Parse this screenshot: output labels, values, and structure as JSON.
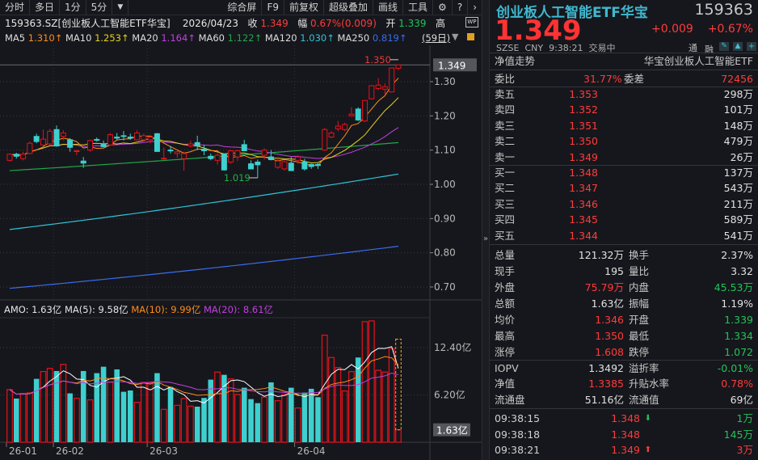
{
  "toolbar": {
    "items": [
      "分时",
      "多日",
      "1分",
      "5分"
    ],
    "dropdown_icon": "caret-down-icon",
    "right_items": [
      "综合屏",
      "F9",
      "前复权",
      "超级叠加",
      "画线",
      "工具"
    ],
    "icons": [
      "gear-icon",
      "help-icon",
      "chevron-right-icon"
    ]
  },
  "info": {
    "code_name": "159363.SZ[创业板人工智能ETF华宝]",
    "date": "2026/04/23",
    "close_label": "收",
    "close": "1.349",
    "change_label": "幅",
    "change": "0.67%(0.009)",
    "open_label": "开",
    "open": "1.339",
    "high_label": "高"
  },
  "ma": [
    {
      "label": "MA5",
      "value": "1.310↑",
      "color": "#ff8c1a"
    },
    {
      "label": "MA10",
      "value": "1.253↑",
      "color": "#e6d21e"
    },
    {
      "label": "MA20",
      "value": "1.164↑",
      "color": "#c040e0"
    },
    {
      "label": "MA60",
      "value": "1.122↑",
      "color": "#1fa84a"
    },
    {
      "label": "MA120",
      "value": "1.030↑",
      "color": "#2ec4d8"
    },
    {
      "label": "MA250",
      "value": "0.819↑",
      "color": "#3a6cf0"
    }
  ],
  "period_label": "(59日)",
  "chart_data": {
    "type": "candlestick",
    "price_axis": {
      "ticks": [
        "1.30",
        "1.20",
        "1.10",
        "1.00",
        "0.90",
        "0.80",
        "0.70"
      ],
      "range": [
        0.68,
        1.37
      ]
    },
    "current_price_label": "1.349",
    "high_marker": "1.350",
    "low_marker": "1.019",
    "date_labels": [
      {
        "label": "26-01",
        "index": 0
      },
      {
        "label": "26-02",
        "index": 7
      },
      {
        "label": "26-03",
        "index": 21
      },
      {
        "label": "26-04",
        "index": 43
      }
    ],
    "ohlc": [
      [
        1.07,
        1.09,
        1.066,
        1.088
      ],
      [
        1.088,
        1.092,
        1.075,
        1.082
      ],
      [
        1.075,
        1.095,
        1.07,
        1.088
      ],
      [
        1.09,
        1.125,
        1.088,
        1.12
      ],
      [
        1.14,
        1.148,
        1.12,
        1.125
      ],
      [
        1.115,
        1.16,
        1.112,
        1.132
      ],
      [
        1.118,
        1.162,
        1.115,
        1.155
      ],
      [
        1.16,
        1.172,
        1.11,
        1.112
      ],
      [
        1.14,
        1.158,
        1.128,
        1.15
      ],
      [
        1.13,
        1.135,
        1.095,
        1.108
      ],
      [
        1.098,
        1.1,
        1.085,
        1.098
      ],
      [
        1.068,
        1.08,
        1.048,
        1.062
      ],
      [
        1.1,
        1.13,
        1.095,
        1.128
      ],
      [
        1.131,
        1.137,
        1.125,
        1.13
      ],
      [
        1.118,
        1.128,
        1.108,
        1.11
      ],
      [
        1.115,
        1.15,
        1.113,
        1.145
      ],
      [
        1.138,
        1.15,
        1.13,
        1.135
      ],
      [
        1.142,
        1.156,
        1.128,
        1.14
      ],
      [
        1.138,
        1.148,
        1.13,
        1.135
      ],
      [
        1.13,
        1.158,
        1.128,
        1.15
      ],
      [
        1.13,
        1.148,
        1.125,
        1.142
      ],
      [
        1.13,
        1.142,
        1.12,
        1.138
      ],
      [
        1.148,
        1.15,
        1.095,
        1.096
      ],
      [
        1.075,
        1.108,
        1.072,
        1.076
      ],
      [
        1.1,
        1.112,
        1.09,
        1.098
      ],
      [
        1.09,
        1.1,
        1.078,
        1.095
      ],
      [
        1.075,
        1.095,
        1.04,
        1.09
      ],
      [
        1.112,
        1.128,
        1.108,
        1.118
      ],
      [
        1.122,
        1.142,
        1.1,
        1.112
      ],
      [
        1.103,
        1.115,
        1.085,
        1.098
      ],
      [
        1.082,
        1.09,
        1.07,
        1.075
      ],
      [
        1.07,
        1.09,
        1.058,
        1.085
      ],
      [
        1.088,
        1.09,
        1.04,
        1.042
      ],
      [
        1.065,
        1.1,
        1.06,
        1.098
      ],
      [
        1.08,
        1.1,
        1.068,
        1.098
      ],
      [
        1.116,
        1.13,
        1.098,
        1.098
      ],
      [
        1.06,
        1.07,
        1.045,
        1.045
      ],
      [
        1.065,
        1.072,
        1.019,
        1.057
      ],
      [
        1.085,
        1.105,
        1.072,
        1.1
      ],
      [
        1.08,
        1.1,
        1.07,
        1.072
      ],
      [
        1.05,
        1.08,
        1.045,
        1.068
      ],
      [
        1.045,
        1.07,
        1.04,
        1.066
      ],
      [
        1.062,
        1.08,
        1.04,
        1.04
      ],
      [
        1.07,
        1.085,
        1.06,
        1.08
      ],
      [
        1.065,
        1.075,
        1.04,
        1.045
      ],
      [
        1.058,
        1.06,
        1.045,
        1.052
      ],
      [
        1.058,
        1.062,
        1.045,
        1.055
      ],
      [
        1.1,
        1.165,
        1.098,
        1.16
      ],
      [
        1.138,
        1.155,
        1.135,
        1.15
      ],
      [
        1.162,
        1.185,
        1.155,
        1.17
      ],
      [
        1.16,
        1.18,
        1.155,
        1.175
      ],
      [
        1.2,
        1.225,
        1.198,
        1.205
      ],
      [
        1.22,
        1.225,
        1.185,
        1.188
      ],
      [
        1.185,
        1.245,
        1.182,
        1.245
      ],
      [
        1.25,
        1.29,
        1.248,
        1.288
      ],
      [
        1.28,
        1.31,
        1.275,
        1.29
      ],
      [
        1.278,
        1.295,
        1.26,
        1.285
      ],
      [
        1.27,
        1.34,
        1.268,
        1.34
      ],
      [
        1.339,
        1.35,
        1.334,
        1.349
      ]
    ],
    "ma60": [
      1.04,
      1.122
    ],
    "ma120": [
      0.868,
      1.03
    ],
    "ma250": [
      0.696,
      0.819
    ],
    "amo_header": {
      "amo": "AMO: 1.63亿",
      "ma5": "MA(5): 9.58亿",
      "ma10": "MA(10): 9.99亿",
      "ma20": "MA(20): 8.61亿"
    },
    "amo_axis": {
      "ticks": [
        "12.40亿",
        "6.20亿"
      ],
      "range": [
        0,
        16.5
      ]
    },
    "current_amo_label": "1.63亿",
    "amo": [
      6.89,
      5.72,
      6.36,
      6.47,
      8.3,
      9.26,
      9.68,
      9.33,
      10.21,
      6.4,
      5.76,
      9.33,
      5.55,
      9.05,
      9.89,
      7.88,
      9.54,
      6.61,
      6.78,
      5.23,
      7.84,
      7.77,
      9.05,
      4.31,
      7.24,
      4.84,
      5.72,
      4.73,
      4.66,
      5.8,
      8.2,
      9.19,
      8.83,
      8.3,
      6.25,
      7.14,
      5.65,
      5.12,
      5.9,
      7.84,
      5.44,
      6.25,
      7.14,
      4.49,
      6.5,
      7.0,
      5.9,
      14.03,
      11.1,
      9.79,
      6.71,
      9.26,
      11.1,
      15.8,
      15.9,
      9.43,
      9.19,
      12.26,
      1.63
    ],
    "amo_projected": 13.5,
    "colors": {
      "up": "#e8111b",
      "down": "#3ecfcf",
      "ma5": "#ff8c1a",
      "ma10": "#e6d21e",
      "ma20": "#c040e0",
      "ma60": "#1fa84a",
      "ma120": "#2ec4d8",
      "ma250": "#3a6cf0",
      "vma5": "#ffffff",
      "vma10": "#ff8c1a",
      "vma20": "#c040e0"
    }
  },
  "quote": {
    "name": "创业板人工智能ETF华宝",
    "code": "159363",
    "price": "1.349",
    "change": "+0.009",
    "change_pct": "+0.67%",
    "exchange": "SZSE",
    "currency": "CNY",
    "time": "9:38:21",
    "status": "交易中",
    "tag1": "通",
    "tag2": "融",
    "nav_trend": "净值走势",
    "fund_name": "华宝创业板人工智能ETF"
  },
  "committee": {
    "ratio_label": "委比",
    "ratio": "31.77%",
    "diff_label": "委差",
    "diff": "72456"
  },
  "asks": [
    {
      "label": "卖五",
      "price": "1.353",
      "vol": "298万"
    },
    {
      "label": "卖四",
      "price": "1.352",
      "vol": "101万"
    },
    {
      "label": "卖三",
      "price": "1.351",
      "vol": "148万"
    },
    {
      "label": "卖二",
      "price": "1.350",
      "vol": "479万"
    },
    {
      "label": "卖一",
      "price": "1.349",
      "vol": "26万"
    }
  ],
  "bids": [
    {
      "label": "买一",
      "price": "1.348",
      "vol": "137万"
    },
    {
      "label": "买二",
      "price": "1.347",
      "vol": "543万"
    },
    {
      "label": "买三",
      "price": "1.346",
      "vol": "211万"
    },
    {
      "label": "买四",
      "price": "1.345",
      "vol": "589万"
    },
    {
      "label": "买五",
      "price": "1.344",
      "vol": "541万"
    }
  ],
  "stats": [
    {
      "l1": "总量",
      "v1": "121.32万",
      "c1": "w",
      "l2": "换手",
      "v2": "2.37%",
      "c2": "w"
    },
    {
      "l1": "现手",
      "v1": "195",
      "c1": "w",
      "l2": "量比",
      "v2": "3.32",
      "c2": "w"
    },
    {
      "l1": "外盘",
      "v1": "75.79万",
      "c1": "r",
      "l2": "内盘",
      "v2": "45.53万",
      "c2": "g"
    },
    {
      "l1": "总额",
      "v1": "1.63亿",
      "c1": "w",
      "l2": "振幅",
      "v2": "1.19%",
      "c2": "w"
    },
    {
      "l1": "均价",
      "v1": "1.346",
      "c1": "r",
      "l2": "开盘",
      "v2": "1.339",
      "c2": "g"
    },
    {
      "l1": "最高",
      "v1": "1.350",
      "c1": "r",
      "l2": "最低",
      "v2": "1.334",
      "c2": "g"
    },
    {
      "l1": "涨停",
      "v1": "1.608",
      "c1": "r",
      "l2": "跌停",
      "v2": "1.072",
      "c2": "g"
    }
  ],
  "fund_stats": [
    {
      "l1": "IOPV",
      "v1": "1.3492",
      "c1": "w",
      "l2": "溢折率",
      "v2": "-0.01%",
      "c2": "g"
    },
    {
      "l1": "净值",
      "v1": "1.3385",
      "c1": "r",
      "l2": "升贴水率",
      "v2": "0.78%",
      "c2": "r"
    },
    {
      "l1": "流通盘",
      "v1": "51.16亿",
      "c1": "w",
      "l2": "流通值",
      "v2": "69亿",
      "c2": "w"
    }
  ],
  "ticks": [
    {
      "time": "09:38:15",
      "price": "1.348",
      "dir": "down",
      "vol": "1万",
      "vc": "g"
    },
    {
      "time": "09:38:18",
      "price": "1.348",
      "dir": "",
      "vol": "145万",
      "vc": "g"
    },
    {
      "time": "09:38:21",
      "price": "1.349",
      "dir": "up",
      "vol": "3万",
      "vc": "r"
    }
  ]
}
